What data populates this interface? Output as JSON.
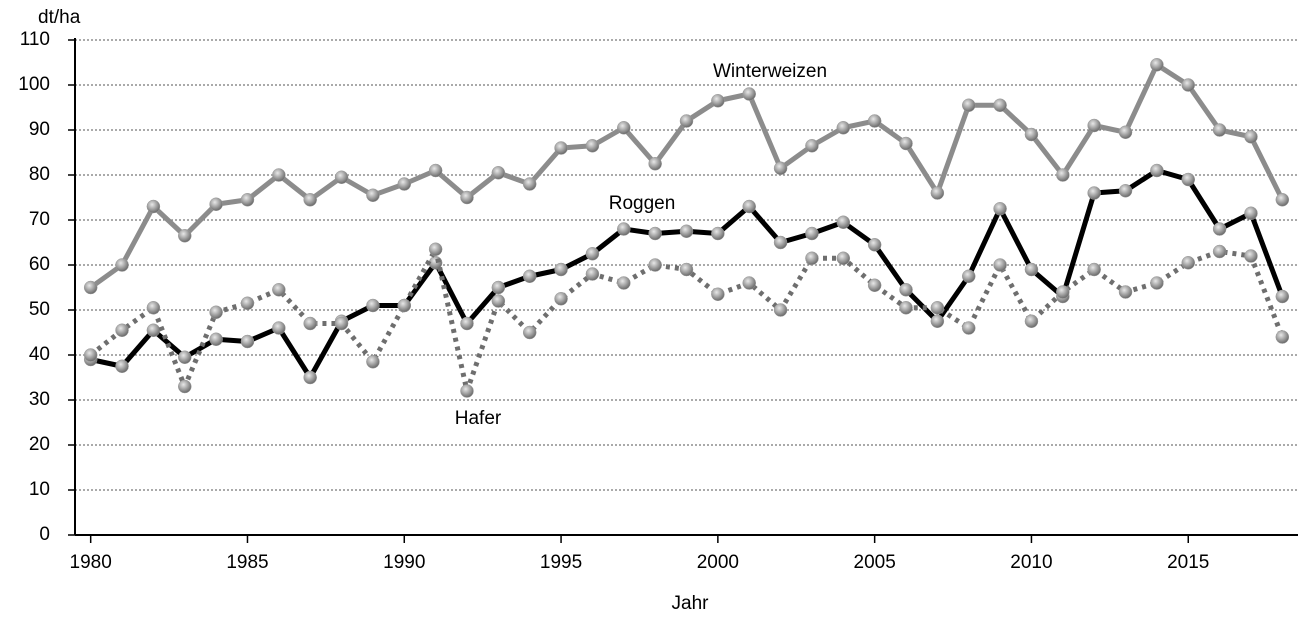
{
  "chart_data": {
    "type": "line",
    "y_label": "dt/ha",
    "x_label": "Jahr",
    "x": [
      1980,
      1981,
      1982,
      1983,
      1984,
      1985,
      1986,
      1987,
      1988,
      1989,
      1990,
      1991,
      1992,
      1993,
      1994,
      1995,
      1996,
      1997,
      1998,
      1999,
      2000,
      2001,
      2002,
      2003,
      2004,
      2005,
      2006,
      2007,
      2008,
      2009,
      2010,
      2011,
      2012,
      2013,
      2014,
      2015,
      2016,
      2017,
      2018
    ],
    "series": [
      {
        "name": "Winterweizen",
        "color": "#8c8c8c",
        "line_style": "solid",
        "values": [
          55,
          60,
          73,
          66.5,
          73.5,
          74.5,
          80,
          74.5,
          79.5,
          75.5,
          78,
          81,
          75,
          80.5,
          78,
          86,
          86.5,
          90.5,
          82.5,
          92,
          96.5,
          98,
          81.5,
          86.5,
          90.5,
          92,
          87,
          76,
          95.5,
          95.5,
          89,
          80,
          91,
          89.5,
          104.5,
          100,
          90,
          88.5,
          74.5
        ]
      },
      {
        "name": "Roggen",
        "color": "#000000",
        "line_style": "solid",
        "values": [
          39,
          37.5,
          45.5,
          39.5,
          43.5,
          43,
          46,
          35,
          47.5,
          51,
          51,
          60.5,
          47,
          55,
          57.5,
          59,
          62.5,
          68,
          67,
          67.5,
          67,
          73,
          65,
          67,
          69.5,
          64.5,
          54.5,
          47.5,
          57.5,
          72.5,
          59,
          53,
          76,
          76.5,
          81,
          79,
          68,
          71.5,
          53
        ]
      },
      {
        "name": "Hafer",
        "color": "#6e6e6e",
        "line_style": "dotted",
        "values": [
          40,
          45.5,
          50.5,
          33,
          49.5,
          51.5,
          54.5,
          47,
          47,
          38.5,
          51,
          63.5,
          32,
          52,
          45,
          52.5,
          58,
          56,
          60,
          59,
          53.5,
          56,
          50,
          61.5,
          61.5,
          55.5,
          50.5,
          50.5,
          46,
          60,
          47.5,
          54,
          59,
          54,
          56,
          60.5,
          63,
          62,
          44
        ]
      }
    ],
    "marker_color": "#9a9a9a",
    "xlim": [
      1979.5,
      2018.5
    ],
    "xticks": [
      1980,
      1985,
      1990,
      1995,
      2000,
      2005,
      2010,
      2015
    ],
    "ylim": [
      0,
      110
    ],
    "yticks": [
      0,
      10,
      20,
      30,
      40,
      50,
      60,
      70,
      80,
      90,
      100,
      110
    ],
    "grid": true
  }
}
